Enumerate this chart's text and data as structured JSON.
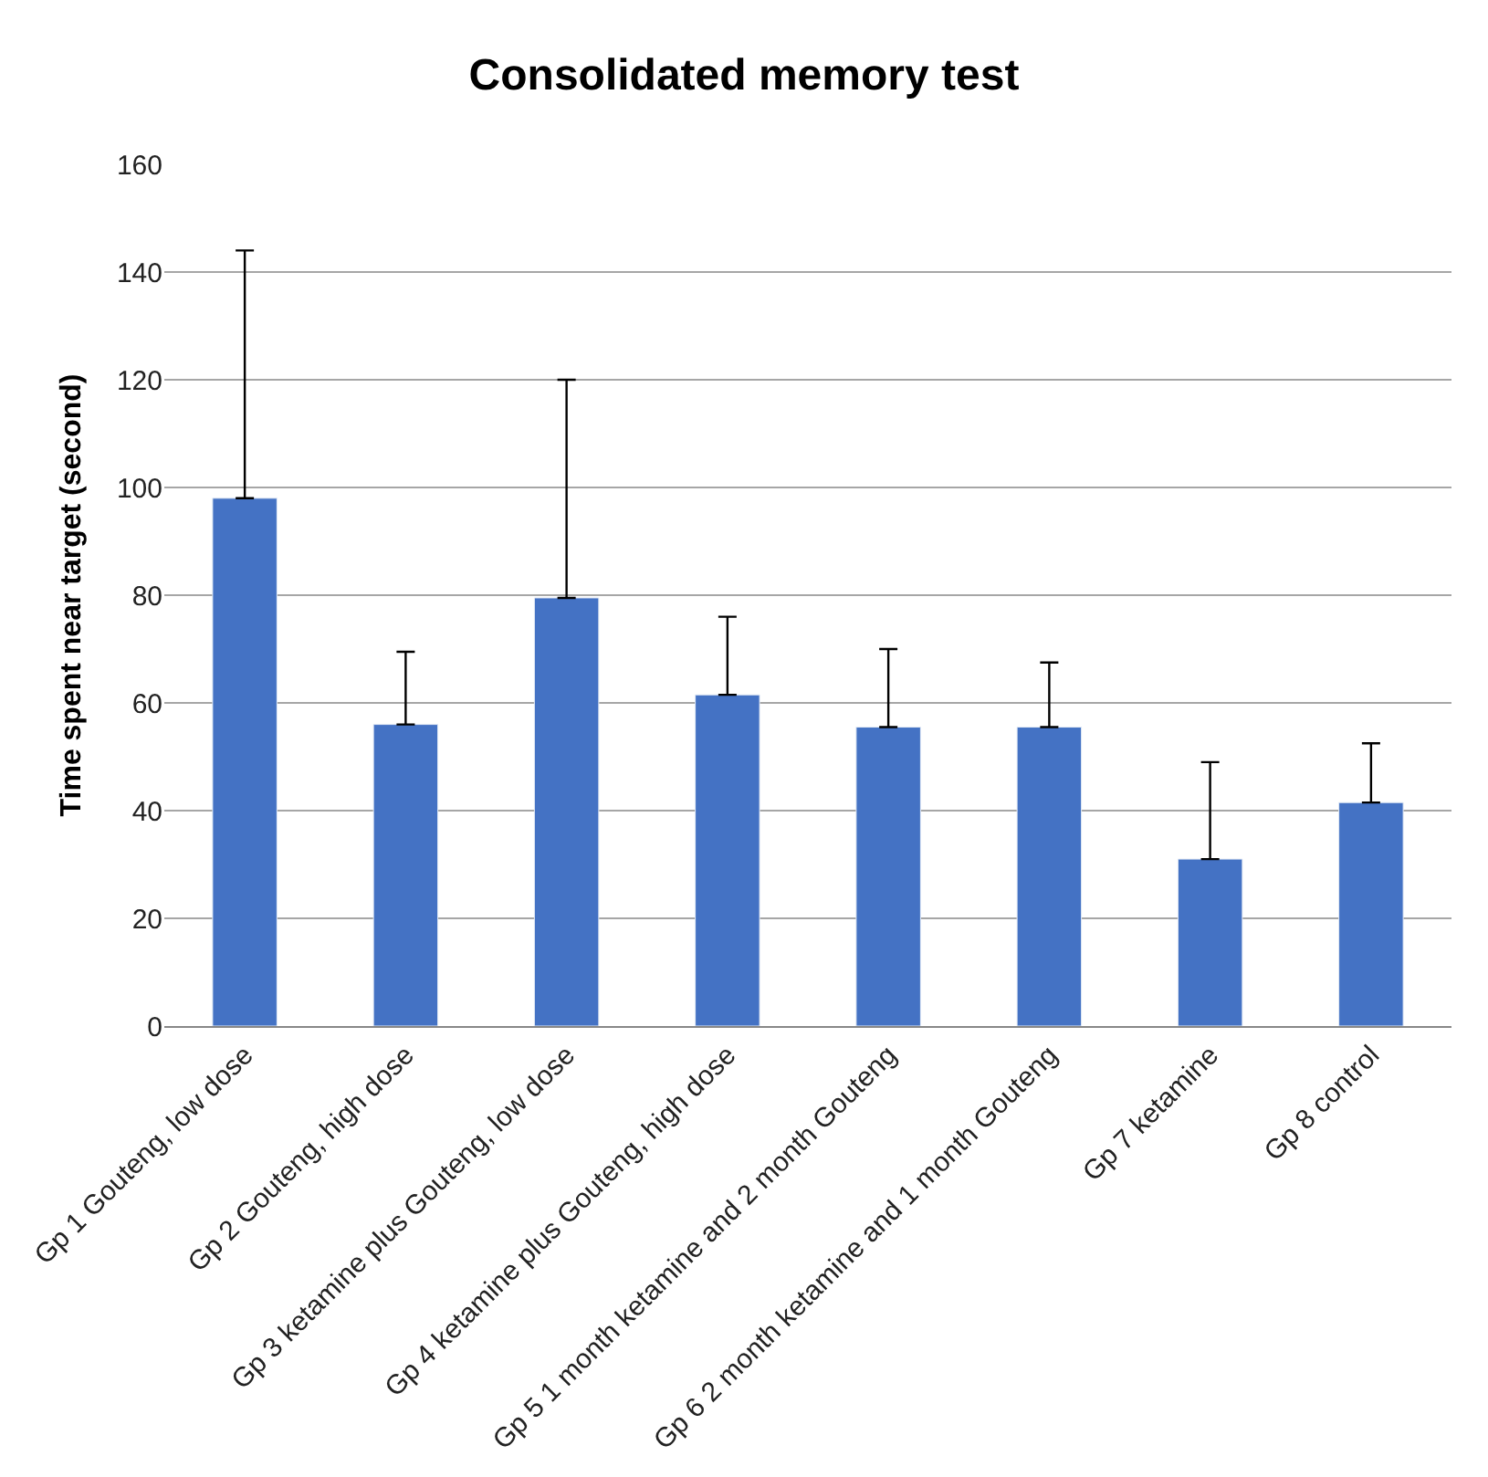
{
  "chart_data": {
    "type": "bar",
    "title": "Consolidated memory test",
    "ylabel": "Time spent near target (second)",
    "categories": [
      "Gp 1 Gouteng, low dose",
      "Gp 2 Gouteng, high dose",
      "Gp 3 ketamine plus Gouteng, low dose",
      "Gp 4 ketamine plus Gouteng, high dose",
      "Gp 5 1 month ketamine and 2 month Gouteng",
      "Gp 6 2 month ketamine and 1 month Gouteng",
      "Gp 7 ketamine",
      "Gp 8 control"
    ],
    "values": [
      98,
      56,
      79.5,
      61.5,
      55.5,
      55.5,
      31,
      41.5
    ],
    "errors": [
      [
        98,
        144
      ],
      [
        56,
        69.5
      ],
      [
        79.5,
        120
      ],
      [
        61.5,
        76
      ],
      [
        55.5,
        70
      ],
      [
        55.5,
        67.5
      ],
      [
        31,
        49
      ],
      [
        41.5,
        52.5
      ]
    ],
    "color": "#4472c4",
    "ylim": [
      0,
      160
    ],
    "yticks": [
      0,
      20,
      40,
      60,
      80,
      100,
      120,
      140,
      160
    ],
    "grid": "y",
    "legend": false
  }
}
